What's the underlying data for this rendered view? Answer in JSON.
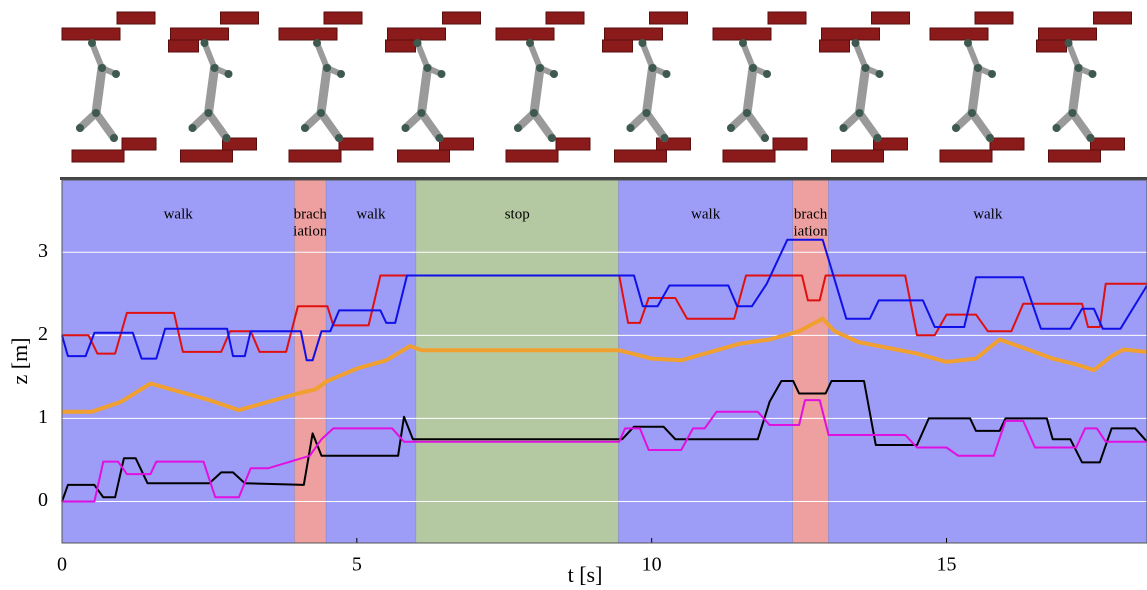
{
  "chart_data": {
    "type": "line",
    "xlabel": "t [s]",
    "ylabel": "z [m]",
    "xlim": [
      0,
      18.4
    ],
    "ylim": [
      -0.5,
      3.87
    ],
    "xticks": [
      0,
      5,
      10,
      15
    ],
    "yticks": [
      0,
      1,
      2,
      3
    ],
    "grid": true,
    "phases": [
      {
        "label": [
          "walk"
        ],
        "start": 0,
        "end": 3.94,
        "color": "#9d9df7"
      },
      {
        "label": [
          "brach",
          "iation"
        ],
        "start": 3.94,
        "end": 4.48,
        "color": "#ee9f9f"
      },
      {
        "label": [
          "walk"
        ],
        "start": 4.48,
        "end": 6.0,
        "color": "#9d9df7"
      },
      {
        "label": [
          "stop"
        ],
        "start": 6.0,
        "end": 9.44,
        "color": "#b4c9a2"
      },
      {
        "label": [
          "walk"
        ],
        "start": 9.44,
        "end": 12.39,
        "color": "#9d9df7"
      },
      {
        "label": [
          "brach",
          "iation"
        ],
        "start": 12.39,
        "end": 13.0,
        "color": "#ee9f9f"
      },
      {
        "label": [
          "walk"
        ],
        "start": 13.0,
        "end": 18.4,
        "color": "#9d9df7"
      }
    ],
    "series": [
      {
        "color": "#e01010",
        "x": [
          0,
          0.45,
          0.6,
          0.9,
          1.1,
          1.9,
          2.05,
          2.7,
          2.85,
          3.2,
          3.35,
          3.8,
          4.0,
          4.5,
          4.6,
          5.2,
          5.4,
          9.45,
          9.6,
          9.8,
          9.95,
          10.4,
          10.6,
          11.4,
          11.6,
          12.55,
          12.65,
          12.85,
          12.95,
          14.3,
          14.5,
          14.8,
          15.0,
          15.5,
          15.7,
          16.1,
          16.3,
          17.3,
          17.4,
          17.6,
          17.7,
          18.4
        ],
        "values": [
          2.0,
          2.0,
          1.78,
          1.78,
          2.27,
          2.27,
          1.8,
          1.8,
          2.05,
          2.05,
          1.8,
          1.8,
          2.35,
          2.35,
          2.12,
          2.12,
          2.72,
          2.72,
          2.15,
          2.15,
          2.45,
          2.45,
          2.2,
          2.2,
          2.72,
          2.72,
          2.42,
          2.42,
          2.72,
          2.72,
          2.0,
          2.0,
          2.25,
          2.25,
          2.05,
          2.05,
          2.38,
          2.38,
          2.1,
          2.1,
          2.62,
          2.62
        ]
      },
      {
        "color": "#1010e8",
        "x": [
          0,
          0.1,
          0.4,
          0.55,
          1.2,
          1.35,
          1.6,
          1.75,
          2.8,
          2.9,
          3.1,
          3.2,
          4.05,
          4.15,
          4.25,
          4.4,
          4.55,
          4.7,
          5.4,
          5.5,
          5.65,
          5.85,
          9.7,
          9.85,
          10.1,
          10.3,
          11.3,
          11.45,
          11.7,
          11.95,
          12.3,
          12.9,
          13.3,
          13.7,
          13.85,
          14.6,
          14.8,
          15.3,
          15.5,
          16.3,
          16.6,
          17.1,
          17.3,
          17.5,
          17.65,
          17.95,
          18.4
        ],
        "values": [
          2.0,
          1.75,
          1.75,
          2.03,
          2.03,
          1.72,
          1.72,
          2.08,
          2.08,
          1.75,
          1.75,
          2.05,
          2.05,
          1.7,
          1.7,
          2.05,
          2.05,
          2.3,
          2.3,
          2.15,
          2.15,
          2.72,
          2.72,
          2.35,
          2.35,
          2.6,
          2.6,
          2.35,
          2.35,
          2.62,
          3.15,
          3.15,
          2.2,
          2.2,
          2.42,
          2.42,
          2.1,
          2.1,
          2.7,
          2.7,
          2.08,
          2.08,
          2.32,
          2.32,
          2.08,
          2.08,
          2.6
        ]
      },
      {
        "color": "#f0a030",
        "x": [
          0,
          0.5,
          1,
          1.5,
          2,
          2.5,
          3,
          3.5,
          4,
          4.3,
          4.5,
          5,
          5.5,
          5.9,
          6.1,
          9.45,
          10,
          10.5,
          11,
          11.5,
          12,
          12.5,
          12.9,
          13.1,
          13.5,
          14,
          14.5,
          15,
          15.5,
          15.9,
          16.3,
          16.8,
          17.2,
          17.5,
          17.8,
          18,
          18.4
        ],
        "values": [
          1.08,
          1.08,
          1.2,
          1.42,
          1.32,
          1.22,
          1.1,
          1.2,
          1.3,
          1.35,
          1.45,
          1.6,
          1.7,
          1.87,
          1.82,
          1.82,
          1.72,
          1.7,
          1.8,
          1.9,
          1.95,
          2.05,
          2.2,
          2.05,
          1.92,
          1.85,
          1.78,
          1.68,
          1.72,
          1.95,
          1.85,
          1.72,
          1.65,
          1.58,
          1.75,
          1.83,
          1.8
        ]
      },
      {
        "color": "#000000",
        "x": [
          0,
          0.1,
          0.55,
          0.7,
          0.9,
          1.05,
          1.25,
          1.45,
          2.5,
          2.7,
          2.9,
          3.1,
          4.1,
          4.25,
          4.4,
          5.7,
          5.8,
          5.95,
          9.5,
          9.7,
          10.2,
          10.4,
          11.8,
          12.0,
          12.2,
          12.4,
          12.5,
          12.95,
          13.05,
          13.6,
          13.8,
          14.5,
          14.7,
          15.4,
          15.5,
          15.9,
          16.0,
          16.7,
          16.8,
          17.1,
          17.3,
          17.6,
          17.8,
          18.2,
          18.4
        ],
        "values": [
          0,
          0.2,
          0.2,
          0.05,
          0.05,
          0.52,
          0.52,
          0.22,
          0.22,
          0.35,
          0.35,
          0.22,
          0.2,
          0.82,
          0.55,
          0.55,
          1.02,
          0.75,
          0.75,
          0.9,
          0.9,
          0.75,
          0.75,
          1.2,
          1.45,
          1.45,
          1.3,
          1.3,
          1.45,
          1.45,
          0.68,
          0.68,
          1.0,
          1.0,
          0.85,
          0.85,
          1.0,
          1.0,
          0.75,
          0.75,
          0.47,
          0.47,
          0.88,
          0.88,
          0.72
        ]
      },
      {
        "color": "#e010e0",
        "x": [
          0,
          0.55,
          0.7,
          0.95,
          1.1,
          1.5,
          1.6,
          2.4,
          2.6,
          3.0,
          3.2,
          3.5,
          4.2,
          4.4,
          4.6,
          5.6,
          5.8,
          9.45,
          9.55,
          9.8,
          9.95,
          10.5,
          10.7,
          10.9,
          11.1,
          11.8,
          12.0,
          12.5,
          12.6,
          12.85,
          13.0,
          14.3,
          14.5,
          15.0,
          15.2,
          15.8,
          16.0,
          16.3,
          16.5,
          17.2,
          17.35,
          17.55,
          17.7,
          18.4
        ],
        "values": [
          0,
          0,
          0.48,
          0.48,
          0.33,
          0.33,
          0.48,
          0.48,
          0.05,
          0.05,
          0.4,
          0.4,
          0.55,
          0.75,
          0.88,
          0.88,
          0.72,
          0.72,
          0.88,
          0.88,
          0.62,
          0.62,
          0.88,
          0.88,
          1.08,
          1.08,
          0.92,
          0.92,
          1.22,
          1.22,
          0.8,
          0.8,
          0.65,
          0.65,
          0.55,
          0.55,
          0.97,
          0.97,
          0.65,
          0.65,
          0.88,
          0.88,
          0.72,
          0.72
        ]
      }
    ]
  }
}
